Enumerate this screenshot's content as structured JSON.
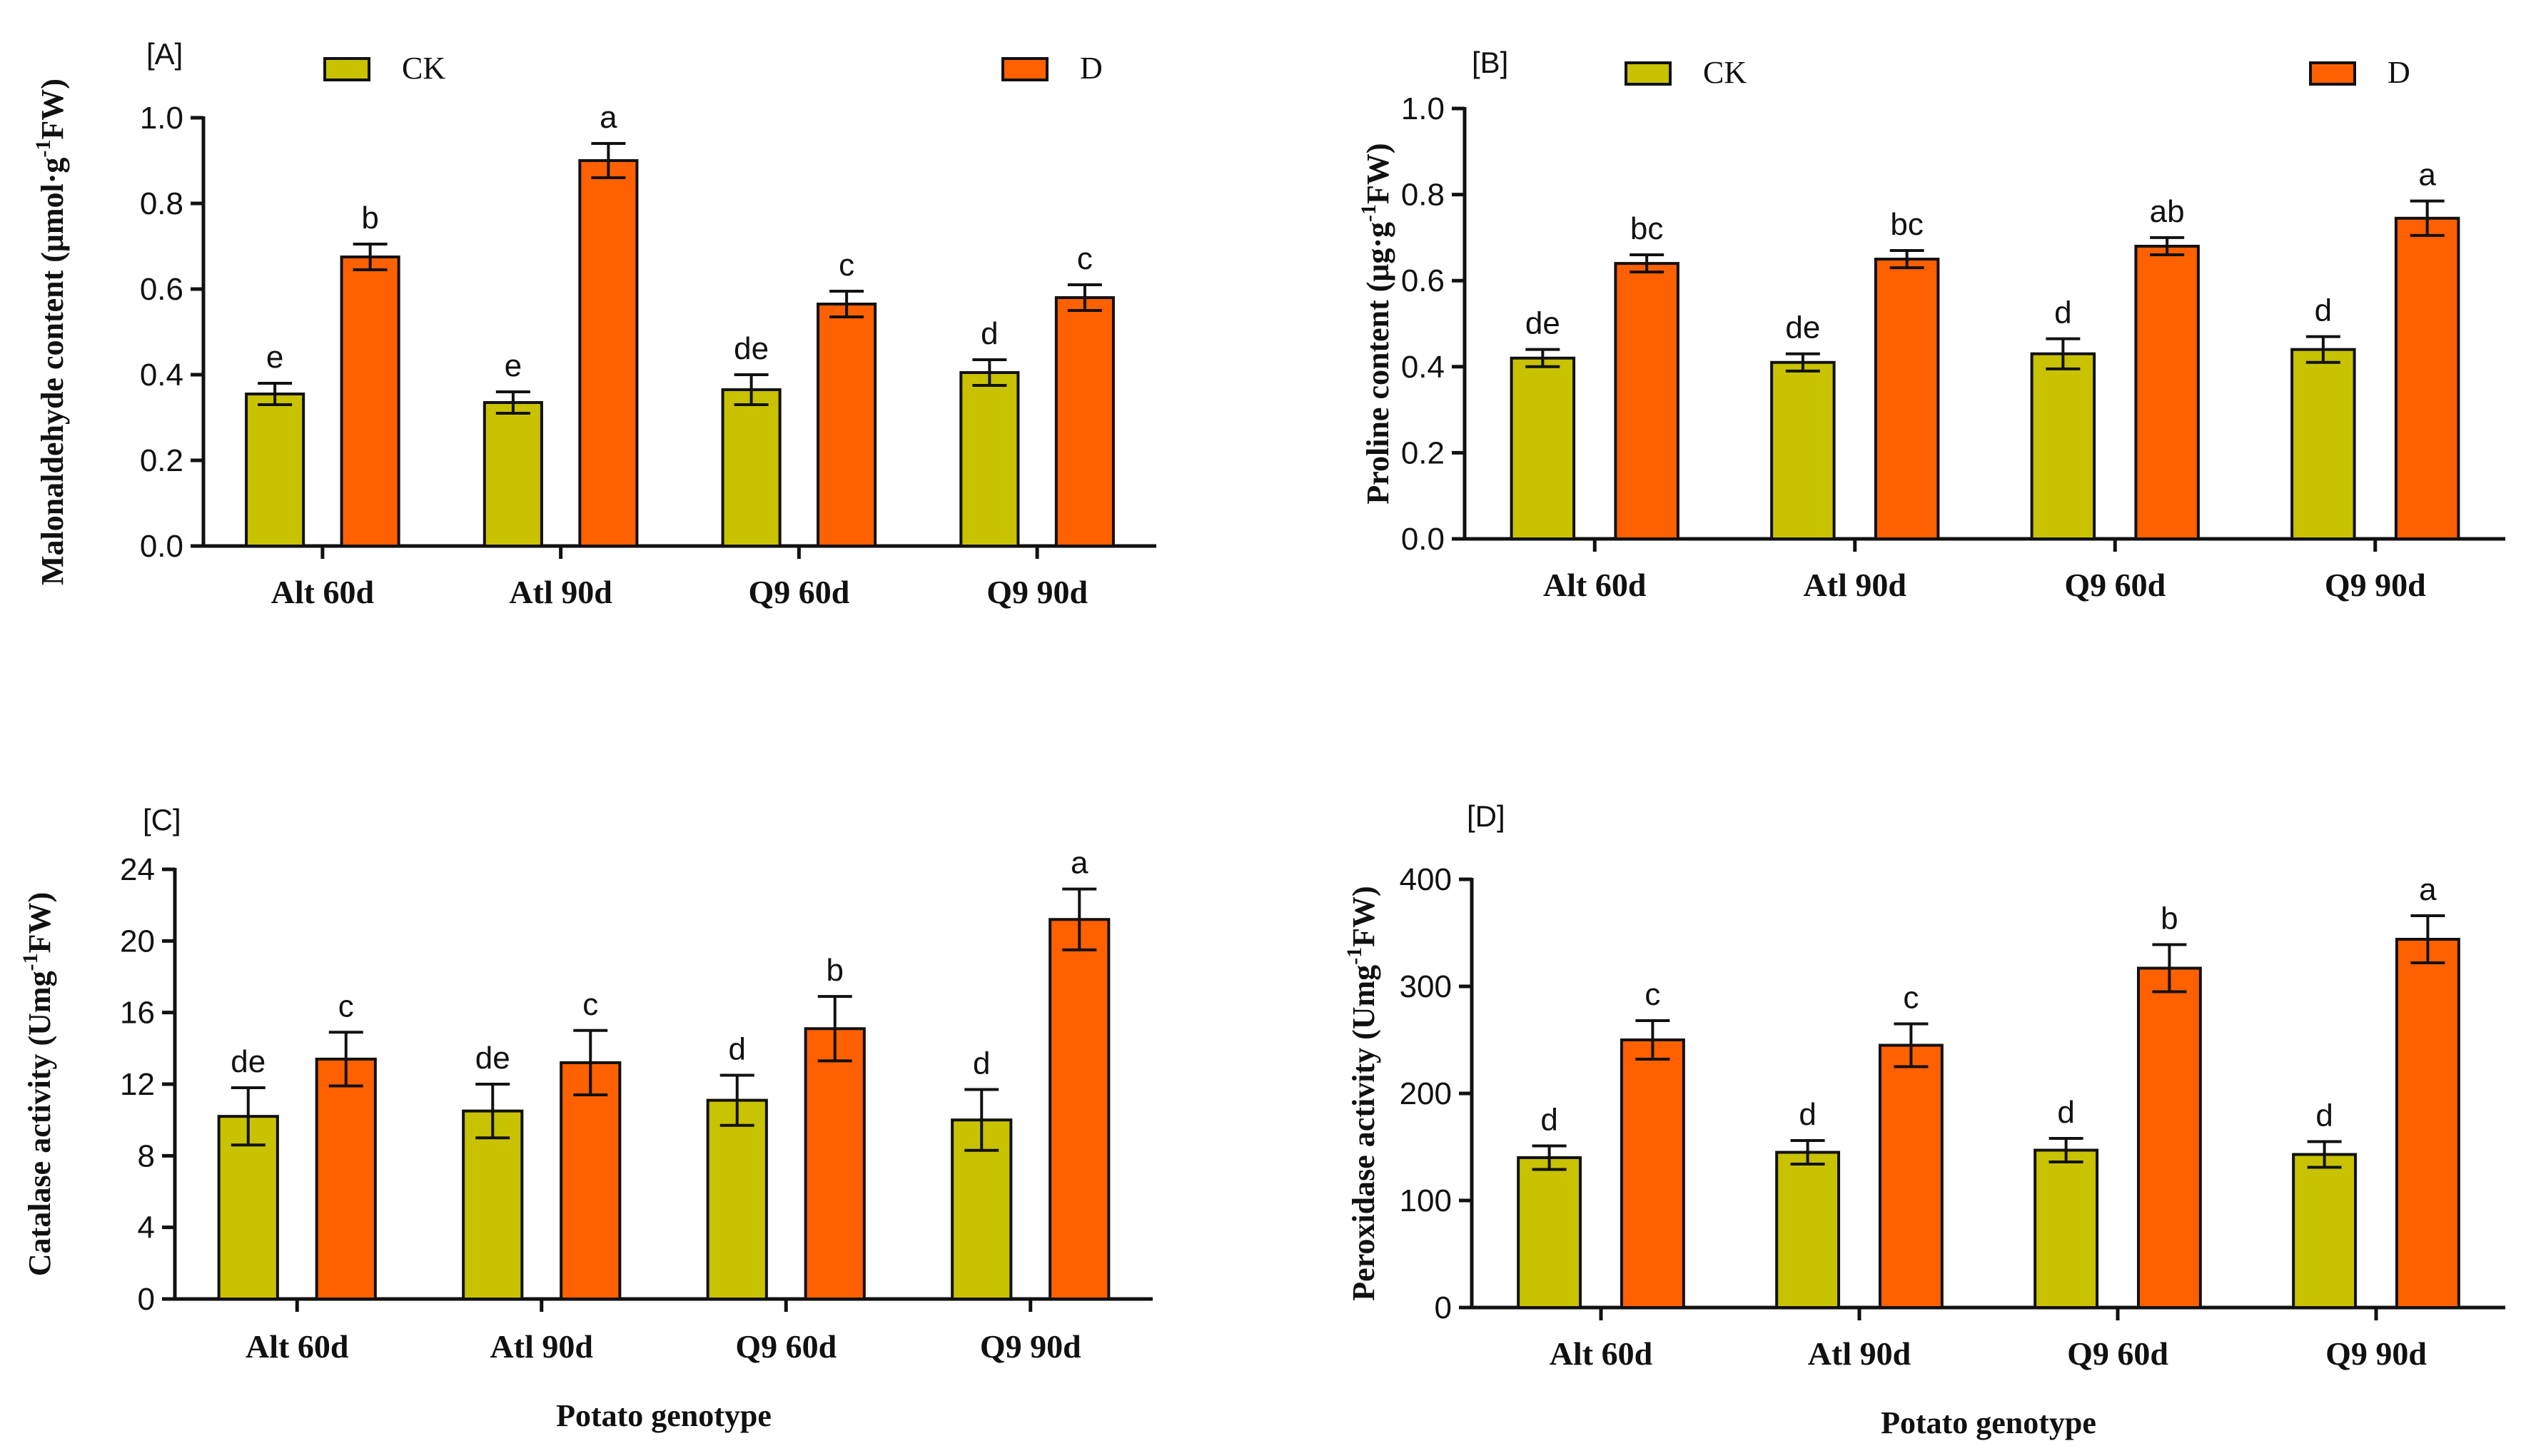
{
  "colors": {
    "CK": "#c8c200",
    "D": "#ff6000",
    "axis": "#111111"
  },
  "chart_data": [
    {
      "type": "bar",
      "panel_label": "[A]",
      "categories": [
        "Alt 60d",
        "Atl 90d",
        "Q9 60d",
        "Q9 90d"
      ],
      "series": [
        {
          "name": "CK",
          "values": [
            0.355,
            0.335,
            0.365,
            0.405
          ],
          "errors": [
            0.025,
            0.025,
            0.035,
            0.03
          ]
        },
        {
          "name": "D",
          "values": [
            0.675,
            0.9,
            0.565,
            0.58
          ],
          "errors": [
            0.03,
            0.04,
            0.03,
            0.03
          ]
        }
      ],
      "significance": [
        [
          "e",
          "e",
          "de",
          "d"
        ],
        [
          "b",
          "a",
          "c",
          "c"
        ]
      ],
      "ylabel": "Malonaldehyde content (μmol·g",
      "ylabel_sup": "-1",
      "ylabel_end": "FW)",
      "xlabel": "",
      "ylim": [
        0,
        1.0
      ],
      "yticks": [
        "0.0",
        "0.2",
        "0.4",
        "0.6",
        "0.8",
        "1.0"
      ],
      "legend": [
        "CK",
        "D"
      ]
    },
    {
      "type": "bar",
      "panel_label": "[B]",
      "categories": [
        "Alt 60d",
        "Atl 90d",
        "Q9 60d",
        "Q9 90d"
      ],
      "series": [
        {
          "name": "CK",
          "values": [
            0.42,
            0.41,
            0.43,
            0.44
          ],
          "errors": [
            0.02,
            0.02,
            0.035,
            0.03
          ]
        },
        {
          "name": "D",
          "values": [
            0.64,
            0.65,
            0.68,
            0.745
          ],
          "errors": [
            0.02,
            0.02,
            0.02,
            0.04
          ]
        }
      ],
      "significance": [
        [
          "de",
          "de",
          "d",
          "d"
        ],
        [
          "bc",
          "bc",
          "ab",
          "a"
        ]
      ],
      "ylabel": "Proline content (μg·g",
      "ylabel_sup": "-1",
      "ylabel_end": "FW)",
      "xlabel": "",
      "ylim": [
        0,
        1.0
      ],
      "yticks": [
        "0.0",
        "0.2",
        "0.4",
        "0.6",
        "0.8",
        "1.0"
      ],
      "legend": [
        "CK",
        "D"
      ]
    },
    {
      "type": "bar",
      "panel_label": "[C]",
      "categories": [
        "Alt 60d",
        "Atl 90d",
        "Q9 60d",
        "Q9 90d"
      ],
      "series": [
        {
          "name": "CK",
          "values": [
            10.2,
            10.5,
            11.1,
            10.0
          ],
          "errors": [
            1.6,
            1.5,
            1.4,
            1.7
          ]
        },
        {
          "name": "D",
          "values": [
            13.4,
            13.2,
            15.1,
            21.2
          ],
          "errors": [
            1.5,
            1.8,
            1.8,
            1.7
          ]
        }
      ],
      "significance": [
        [
          "de",
          "de",
          "d",
          "d"
        ],
        [
          "c",
          "c",
          "b",
          "a"
        ]
      ],
      "ylabel": "Catalase activity (Umg",
      "ylabel_sup": "-1",
      "ylabel_end": "FW)",
      "xlabel": "Potato genotype",
      "ylim": [
        0,
        24
      ],
      "yticks": [
        "0",
        "4",
        "8",
        "12",
        "16",
        "20",
        "24"
      ],
      "legend": []
    },
    {
      "type": "bar",
      "panel_label": "[D]",
      "categories": [
        "Alt 60d",
        "Atl 90d",
        "Q9 60d",
        "Q9 90d"
      ],
      "series": [
        {
          "name": "CK",
          "values": [
            140,
            145,
            147,
            143
          ],
          "errors": [
            11,
            11,
            11,
            12
          ]
        },
        {
          "name": "D",
          "values": [
            250,
            245,
            317,
            344
          ],
          "errors": [
            18,
            20,
            22,
            22
          ]
        }
      ],
      "significance": [
        [
          "d",
          "d",
          "d",
          "d"
        ],
        [
          "c",
          "c",
          "b",
          "a"
        ]
      ],
      "ylabel": "Peroxidase activity (Umg",
      "ylabel_sup": "-1",
      "ylabel_end": "FW)",
      "xlabel": "Potato genotype",
      "ylim": [
        0,
        400
      ],
      "yticks": [
        "0",
        "100",
        "200",
        "300",
        "400"
      ],
      "legend": []
    }
  ]
}
